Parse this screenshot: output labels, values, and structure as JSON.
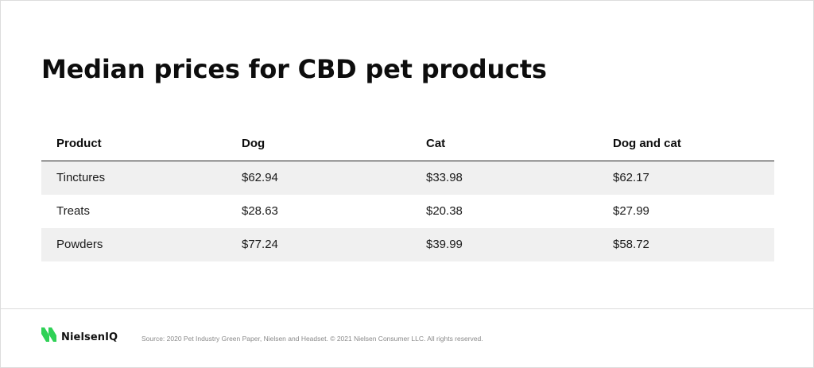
{
  "chart_data": {
    "type": "table",
    "title": "Median prices for CBD pet products",
    "columns": [
      "Product",
      "Dog",
      "Cat",
      "Dog and cat"
    ],
    "rows": [
      [
        "Tinctures",
        "$62.94",
        "$33.98",
        "$62.17"
      ],
      [
        "Treats",
        "$28.63",
        "$20.38",
        "$27.99"
      ],
      [
        "Powders",
        "$77.24",
        "$39.99",
        "$58.72"
      ]
    ]
  },
  "footer": {
    "logo_text": "NielsenIQ",
    "source": "Source:  2020 Pet Industry Green Paper, Nielsen and Headset. © 2021 Nielsen Consumer LLC. All rights reserved."
  },
  "colors": {
    "logo_green": "#2fd156",
    "shaded_row": "#f0f0f0",
    "header_rule": "#222222"
  },
  "icons": {
    "logo": "nielseniq-logo-icon"
  }
}
